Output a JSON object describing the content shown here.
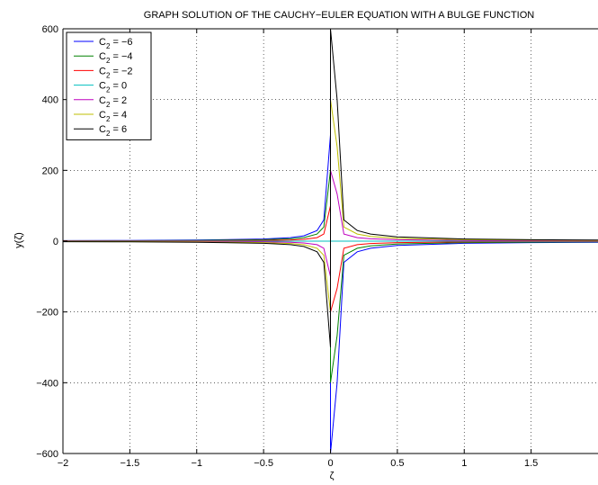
{
  "chart_data": {
    "type": "line",
    "title": "GRAPH SOLUTION OF THE CAUCHY−EULER EQUATION WITH A BULGE FUNCTION",
    "xlabel": "ζ",
    "ylabel": "y(ζ)",
    "xlim": [
      -2,
      2
    ],
    "ylim": [
      -600,
      600
    ],
    "grid": true,
    "legend_position": "top-left",
    "x_ticks": [
      -2,
      -1.5,
      -1,
      -0.5,
      0,
      0.5,
      1,
      1.5
    ],
    "x_tick_labels": [
      "−2",
      "−1.5",
      "−1",
      "−0.5",
      "0",
      "0.5",
      "1",
      "1.5"
    ],
    "y_ticks": [
      -600,
      -400,
      -200,
      0,
      200,
      400,
      600
    ],
    "y_tick_labels": [
      "−600",
      "−400",
      "−200",
      "0",
      "200",
      "400",
      "600"
    ],
    "x": [
      -2,
      -1.5,
      -1,
      -0.5,
      -0.3,
      -0.2,
      -0.1,
      -0.05,
      0,
      0.0001,
      0.05,
      0.1,
      0.2,
      0.3,
      0.5,
      1,
      1.5,
      2
    ],
    "series": [
      {
        "name": "C",
        "subscript": "2",
        "value_label": " = −6",
        "color": "#0000ff",
        "values": [
          1.5,
          2,
          3,
          6,
          10,
          15,
          30,
          60,
          300,
          -600,
          -400,
          -60,
          -30,
          -20,
          -12,
          -6,
          -4,
          -3
        ]
      },
      {
        "name": "C",
        "subscript": "2",
        "value_label": " = −4",
        "color": "#008000",
        "values": [
          1,
          1.33,
          2,
          4,
          6.7,
          10,
          20,
          40,
          200,
          -400,
          -266.7,
          -40,
          -20,
          -13.3,
          -8,
          -4,
          -2.7,
          -2
        ]
      },
      {
        "name": "C",
        "subscript": "2",
        "value_label": " = −2",
        "color": "#ff0000",
        "values": [
          0.5,
          0.67,
          1,
          2,
          3.3,
          5,
          10,
          20,
          100,
          -200,
          -133.3,
          -20,
          -10,
          -6.7,
          -4,
          -2,
          -1.3,
          -1
        ]
      },
      {
        "name": "C",
        "subscript": "2",
        "value_label": " = 0",
        "color": "#00bfbf",
        "values": [
          0,
          0,
          0,
          0,
          0,
          0,
          0,
          0,
          0,
          0,
          0,
          0,
          0,
          0,
          0,
          0,
          0,
          0
        ]
      },
      {
        "name": "C",
        "subscript": "2",
        "value_label": " = 2",
        "color": "#bf00bf",
        "values": [
          -0.5,
          -0.67,
          -1,
          -2,
          -3.3,
          -5,
          -10,
          -20,
          -100,
          200,
          133.3,
          20,
          10,
          6.7,
          4,
          2,
          1.3,
          1
        ]
      },
      {
        "name": "C",
        "subscript": "2",
        "value_label": " = 4",
        "color": "#bfbf00",
        "values": [
          -1,
          -1.33,
          -2,
          -4,
          -6.7,
          -10,
          -20,
          -40,
          -200,
          400,
          266.7,
          40,
          20,
          13.3,
          8,
          4,
          2.7,
          2
        ]
      },
      {
        "name": "C",
        "subscript": "2",
        "value_label": " = 6",
        "color": "#000000",
        "values": [
          -1.5,
          -2,
          -3,
          -6,
          -10,
          -15,
          -30,
          -60,
          -300,
          600,
          400,
          60,
          30,
          20,
          12,
          6,
          4,
          3
        ]
      }
    ]
  }
}
